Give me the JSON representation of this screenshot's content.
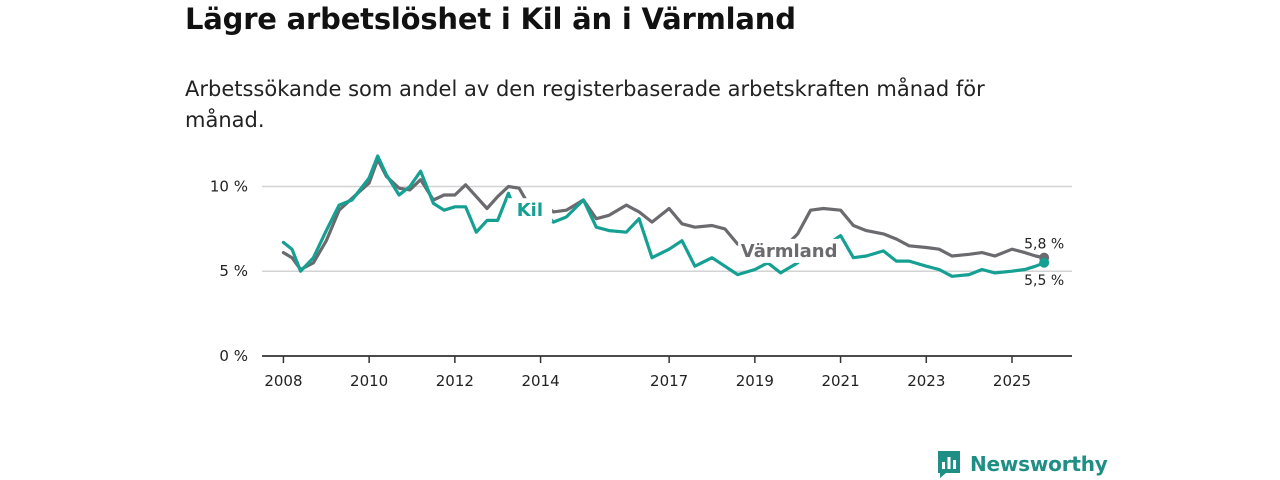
{
  "header": {
    "title": "Lägre arbetslöshet i Kil än i Värmland",
    "subtitle": "Arbetssökande som andel av den registerbaserade arbetskraften månad för månad."
  },
  "brand": {
    "name": "Newsworthy",
    "icon": "newsworthy-logo-icon",
    "color": "#1f8f86"
  },
  "chart_data": {
    "type": "line",
    "title": "Lägre arbetslöshet i Kil än i Värmland",
    "subtitle": "Arbetssökande som andel av den registerbaserade arbetskraften månad för månad.",
    "xlabel": "",
    "ylabel": "",
    "xlim": [
      2007.5,
      2026.4
    ],
    "ylim": [
      0,
      10.5
    ],
    "x_ticks": [
      2008,
      2010,
      2012,
      2014,
      2017,
      2019,
      2021,
      2023,
      2025
    ],
    "x_tick_labels": [
      "2008",
      "2010",
      "2012",
      "2014",
      "2017",
      "2019",
      "2021",
      "2023",
      "2025"
    ],
    "y_ticks": [
      0,
      5,
      10
    ],
    "y_tick_labels": [
      "0 %",
      "5 %",
      "10 %"
    ],
    "grid": "horizontal",
    "series": [
      {
        "name": "Värmland",
        "color": "#6b6a6f",
        "label_x": 2019.8,
        "end_label": "5,8 %",
        "x": [
          2008.0,
          2008.2,
          2008.4,
          2008.7,
          2009.0,
          2009.3,
          2009.6,
          2010.0,
          2010.2,
          2010.4,
          2010.7,
          2010.95,
          2011.2,
          2011.5,
          2011.75,
          2012.0,
          2012.25,
          2012.5,
          2012.75,
          2013.0,
          2013.25,
          2013.5,
          2013.75,
          2014.0,
          2014.3,
          2014.6,
          2015.0,
          2015.3,
          2015.6,
          2016.0,
          2016.3,
          2016.6,
          2017.0,
          2017.3,
          2017.6,
          2018.0,
          2018.3,
          2018.6,
          2019.0,
          2019.3,
          2019.6,
          2020.0,
          2020.3,
          2020.6,
          2021.0,
          2021.3,
          2021.6,
          2022.0,
          2022.3,
          2022.6,
          2023.0,
          2023.3,
          2023.6,
          2024.0,
          2024.3,
          2024.6,
          2025.0,
          2025.3,
          2025.55,
          2025.75
        ],
        "values": [
          6.1,
          5.8,
          5.1,
          5.5,
          6.8,
          8.6,
          9.3,
          10.2,
          11.6,
          10.6,
          9.9,
          9.8,
          10.4,
          9.2,
          9.5,
          9.5,
          10.1,
          9.4,
          8.7,
          9.4,
          10.0,
          9.9,
          8.8,
          9.1,
          8.5,
          8.6,
          9.2,
          8.1,
          8.3,
          8.9,
          8.5,
          7.9,
          8.7,
          7.8,
          7.6,
          7.7,
          7.5,
          6.6,
          6.5,
          6.5,
          6.2,
          7.2,
          8.6,
          8.7,
          8.6,
          7.7,
          7.4,
          7.2,
          6.9,
          6.5,
          6.4,
          6.3,
          5.9,
          6.0,
          6.1,
          5.9,
          6.3,
          6.1,
          5.9,
          5.8
        ]
      },
      {
        "name": "Kil",
        "color": "#16a093",
        "label_x": 2013.75,
        "end_label": "5,5 %",
        "x": [
          2008.0,
          2008.2,
          2008.4,
          2008.7,
          2009.0,
          2009.3,
          2009.6,
          2010.0,
          2010.2,
          2010.4,
          2010.7,
          2010.95,
          2011.2,
          2011.5,
          2011.75,
          2012.0,
          2012.25,
          2012.5,
          2012.75,
          2013.0,
          2013.25,
          2013.5,
          2013.75,
          2014.0,
          2014.3,
          2014.6,
          2015.0,
          2015.3,
          2015.6,
          2016.0,
          2016.3,
          2016.6,
          2017.0,
          2017.3,
          2017.6,
          2018.0,
          2018.3,
          2018.6,
          2019.0,
          2019.3,
          2019.6,
          2020.0,
          2020.3,
          2020.6,
          2021.0,
          2021.3,
          2021.6,
          2022.0,
          2022.3,
          2022.6,
          2023.0,
          2023.3,
          2023.6,
          2024.0,
          2024.3,
          2024.6,
          2025.0,
          2025.3,
          2025.55,
          2025.75
        ],
        "values": [
          6.7,
          6.3,
          5.0,
          5.8,
          7.4,
          8.9,
          9.2,
          10.5,
          11.8,
          10.7,
          9.5,
          10.0,
          10.9,
          9.0,
          8.6,
          8.8,
          8.8,
          7.3,
          8.0,
          8.0,
          9.6,
          8.0,
          8.6,
          8.7,
          7.9,
          8.2,
          9.2,
          7.6,
          7.4,
          7.3,
          8.1,
          5.8,
          6.3,
          6.8,
          5.3,
          5.8,
          5.3,
          4.8,
          5.1,
          5.5,
          4.9,
          5.5,
          6.4,
          6.4,
          7.1,
          5.8,
          5.9,
          6.2,
          5.6,
          5.6,
          5.3,
          5.1,
          4.7,
          4.8,
          5.1,
          4.9,
          5.0,
          5.1,
          5.3,
          5.5
        ]
      }
    ]
  }
}
